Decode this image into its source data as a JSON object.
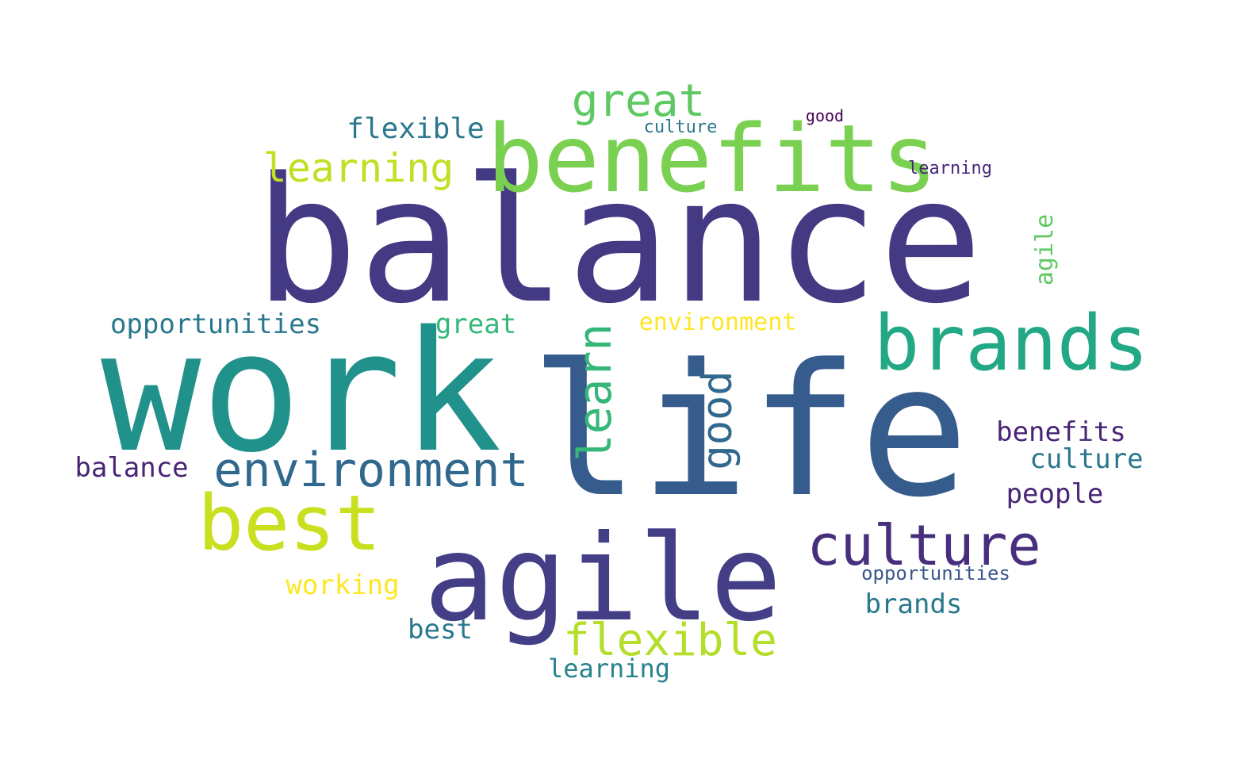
{
  "words": [
    {
      "text": "balance",
      "color": "#443983"
    },
    {
      "text": "work",
      "color": "#21918c"
    },
    {
      "text": "life",
      "color": "#365c8d"
    },
    {
      "text": "benefits",
      "color": "#7ad151"
    },
    {
      "text": "agile",
      "color": "#433e85"
    },
    {
      "text": "brands",
      "color": "#22a884"
    },
    {
      "text": "best",
      "color": "#c8e020"
    },
    {
      "text": "culture",
      "color": "#472f7d"
    },
    {
      "text": "environment",
      "color": "#31688e"
    },
    {
      "text": "great",
      "color": "#5ec962"
    },
    {
      "text": "learning",
      "color": "#c2df23"
    },
    {
      "text": "flexible",
      "color": "#b5de2b"
    },
    {
      "text": "learn",
      "color": "#35b779"
    },
    {
      "text": "good",
      "color": "#31688e"
    },
    {
      "text": "flexible",
      "color": "#2a788e"
    },
    {
      "text": "opportunities",
      "color": "#2a788e"
    },
    {
      "text": "brands",
      "color": "#2a788e"
    },
    {
      "text": "benefits",
      "color": "#482475"
    },
    {
      "text": "culture",
      "color": "#2a788e"
    },
    {
      "text": "people",
      "color": "#482475"
    },
    {
      "text": "balance",
      "color": "#482475"
    },
    {
      "text": "learning",
      "color": "#26828e"
    },
    {
      "text": "working",
      "color": "#fde725"
    },
    {
      "text": "great",
      "color": "#35b779"
    },
    {
      "text": "environment",
      "color": "#fde725"
    },
    {
      "text": "agile",
      "color": "#5ec962"
    },
    {
      "text": "opportunities",
      "color": "#39568c"
    },
    {
      "text": "learning",
      "color": "#482878"
    },
    {
      "text": "culture",
      "color": "#2a788e"
    },
    {
      "text": "good",
      "color": "#440154"
    },
    {
      "text": "best",
      "color": "#2a788e"
    }
  ]
}
